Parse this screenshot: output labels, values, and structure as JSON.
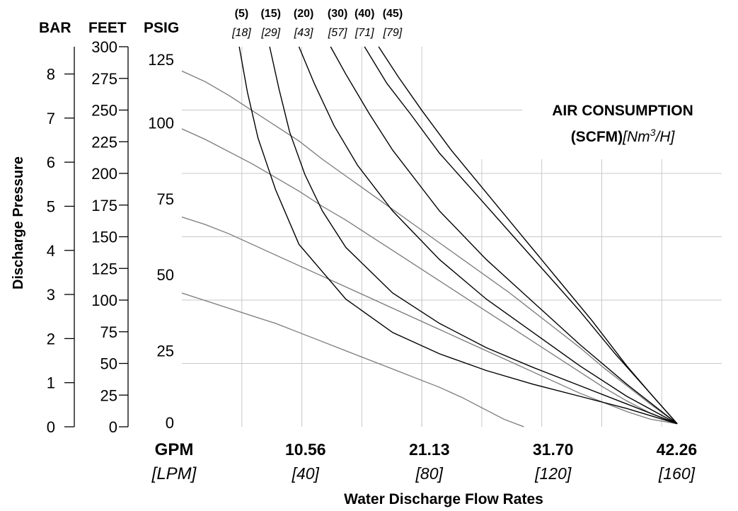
{
  "chart_data": {
    "type": "line",
    "legend": {
      "title": "AIR CONSUMPTION",
      "unit_main": "(SCFM)",
      "unit_alt_a": "[Nm",
      "unit_alt_sup": "3",
      "unit_alt_b": "/H]"
    },
    "headers": {
      "bar": "BAR",
      "feet": "FEET",
      "psig": "PSIG"
    },
    "ylabel": "Discharge Pressure",
    "xlabel": "Water Discharge Flow Rates",
    "x_unit": "GPM",
    "x_unit_alt": "[LPM]",
    "xlim": [
      0,
      46.1
    ],
    "ylim": [
      0,
      125
    ],
    "bar_ticks": [
      "0",
      "1",
      "2",
      "3",
      "4",
      "5",
      "6",
      "7",
      "8"
    ],
    "feet_ticks": [
      "0",
      "25",
      "50",
      "75",
      "100",
      "125",
      "150",
      "175",
      "200",
      "225",
      "250",
      "275",
      "300"
    ],
    "psig_ticks": [
      "0",
      "25",
      "50",
      "75",
      "100",
      "125"
    ],
    "x_ticks": [
      {
        "x": 10.56,
        "label": "10.56",
        "alt": "[40]"
      },
      {
        "x": 21.13,
        "label": "21.13",
        "alt": "[80]"
      },
      {
        "x": 31.7,
        "label": "31.70",
        "alt": "[120]"
      },
      {
        "x": 42.26,
        "label": "42.26",
        "alt": "[160]"
      }
    ],
    "air_labels": [
      {
        "x": 5.1,
        "label": "(5)",
        "alt": "[18]"
      },
      {
        "x": 7.6,
        "label": "(15)",
        "alt": "[29]"
      },
      {
        "x": 10.4,
        "label": "(20)",
        "alt": "[43]"
      },
      {
        "x": 13.3,
        "label": "(30)",
        "alt": "[57]"
      },
      {
        "x": 15.6,
        "label": "(40)",
        "alt": "[71]"
      },
      {
        "x": 18.0,
        "label": "(45)",
        "alt": "[79]"
      }
    ],
    "air_curves": [
      {
        "x": [
          4.9,
          5.6,
          6.5,
          8.0,
          10.0,
          14.0,
          18.0,
          22.0,
          26.0,
          30.0,
          34.0,
          38.0,
          42.3
        ],
        "y": [
          125,
          110,
          95,
          78,
          60,
          42,
          31,
          24,
          18.5,
          14,
          10,
          6,
          1
        ]
      },
      {
        "x": [
          7.5,
          8.3,
          9.2,
          10.5,
          12.0,
          14.0,
          18.0,
          22.0,
          26.0,
          30.0,
          34.0,
          38.0,
          42.3
        ],
        "y": [
          125,
          111,
          97,
          83,
          71,
          59,
          44,
          34,
          26,
          19.5,
          13.5,
          7.5,
          1
        ]
      },
      {
        "x": [
          10.0,
          11.3,
          13.0,
          15.0,
          18.0,
          22.0,
          26.0,
          30.0,
          34.0,
          38.0,
          42.3
        ],
        "y": [
          125,
          113,
          99,
          86,
          71,
          55,
          42,
          31,
          20,
          10,
          1
        ]
      },
      {
        "x": [
          12.7,
          14.0,
          16.0,
          18.0,
          20.0,
          22.0,
          26.0,
          30.0,
          34.0,
          38.0,
          42.3
        ],
        "y": [
          125,
          116,
          103,
          91,
          81,
          71,
          55,
          41,
          27,
          14,
          1
        ]
      },
      {
        "x": [
          15.6,
          17.5,
          19.5,
          22.0,
          25.0,
          28.0,
          31.0,
          34.0,
          37.0,
          40.0,
          42.3
        ],
        "y": [
          125,
          113,
          103,
          90,
          77,
          64,
          51,
          38,
          24,
          11,
          1
        ]
      },
      {
        "x": [
          16.8,
          18.5,
          20.5,
          23.0,
          26.0,
          29.0,
          32.0,
          35.0,
          38.0,
          40.0,
          42.3
        ],
        "y": [
          125,
          115,
          104,
          91,
          77,
          63,
          49,
          35,
          20,
          11,
          1
        ]
      }
    ],
    "pressure_curves": [
      {
        "x": [
          0,
          2,
          4,
          6,
          8,
          10,
          12,
          14,
          16,
          18,
          20,
          22,
          24,
          26,
          28,
          30,
          32,
          34,
          36,
          38,
          40,
          42.3
        ],
        "y": [
          117,
          113.5,
          109,
          104,
          99,
          94,
          88,
          82.5,
          77,
          71.5,
          66,
          60.5,
          55,
          49.5,
          44,
          38,
          32,
          26,
          19.5,
          13.5,
          7.5,
          1
        ]
      },
      {
        "x": [
          0,
          2,
          4,
          6,
          8,
          10,
          12,
          14,
          16,
          18,
          20,
          22,
          24,
          26,
          28,
          30,
          32,
          34,
          36,
          38,
          40,
          42.3
        ],
        "y": [
          98,
          94.5,
          90.5,
          86.5,
          82,
          77.5,
          72.5,
          68,
          63,
          58,
          53,
          48,
          43,
          38,
          33,
          28,
          23,
          18,
          13,
          8.5,
          4.5,
          1
        ]
      },
      {
        "x": [
          0,
          2,
          4,
          6,
          8,
          10,
          12,
          14,
          16,
          18,
          20,
          22,
          24,
          26,
          28,
          30,
          32,
          34,
          36,
          38,
          40,
          42.3
        ],
        "y": [
          69,
          66.5,
          63.5,
          60,
          56.5,
          53,
          49.5,
          46,
          42.5,
          39,
          35.5,
          32,
          28.5,
          25,
          21.5,
          18,
          14.5,
          11,
          8,
          5,
          2.5,
          1
        ]
      },
      {
        "x": [
          0,
          2,
          4,
          6,
          8,
          10,
          12,
          14,
          16,
          18,
          20,
          22,
          24,
          26,
          27.5,
          29.2
        ],
        "y": [
          44,
          41.5,
          39,
          36.5,
          34,
          31,
          28,
          25,
          22,
          19,
          16,
          13,
          9.5,
          5.5,
          2.5,
          0
        ]
      }
    ]
  }
}
